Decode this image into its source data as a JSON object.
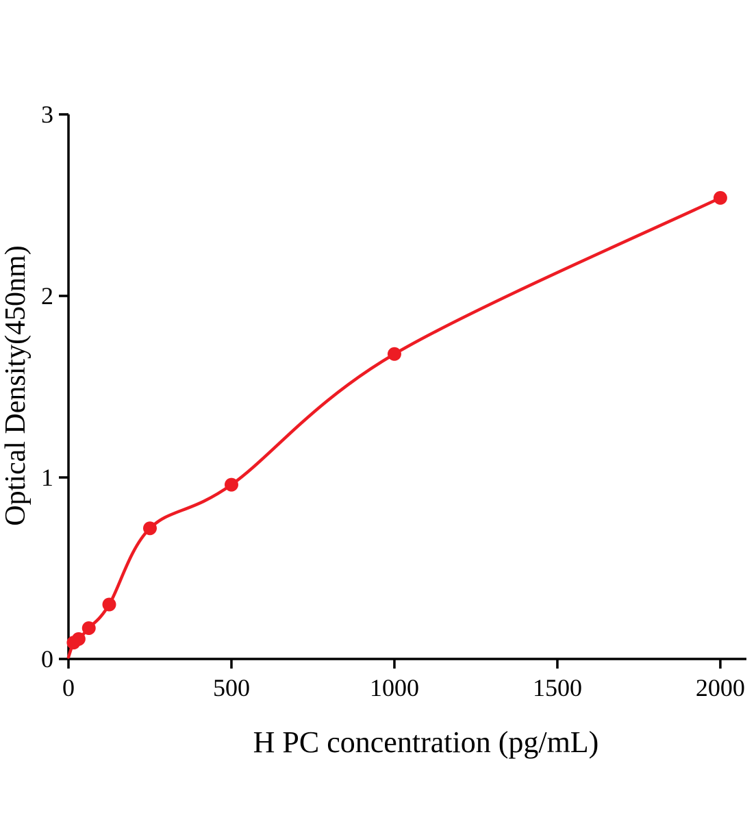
{
  "chart_data": {
    "type": "scatter",
    "title": "",
    "xlabel": "H PC concentration (pg/mL)",
    "ylabel": "Optical Density(450nm)",
    "x": [
      15.6,
      31.2,
      62.5,
      125,
      250,
      500,
      1000,
      2000
    ],
    "y": [
      0.09,
      0.11,
      0.17,
      0.3,
      0.72,
      0.96,
      1.68,
      2.54
    ],
    "xlim": [
      0,
      2080
    ],
    "ylim": [
      0,
      3
    ],
    "xticks": [
      0,
      500,
      1000,
      1500,
      2000
    ],
    "yticks": [
      0,
      1,
      2,
      3
    ],
    "grid": false,
    "legend": "none",
    "curve": "smooth-fit-through-points",
    "colors": {
      "points": "#ed1c24",
      "curve": "#ed1c24",
      "axis": "#000000",
      "background": "#ffffff"
    }
  }
}
